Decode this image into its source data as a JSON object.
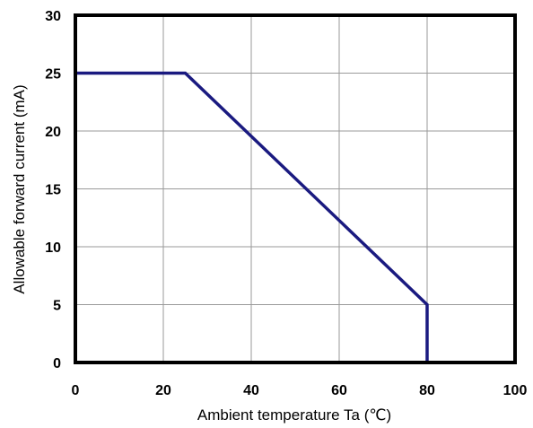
{
  "chart_data": {
    "type": "line",
    "title": "",
    "xlabel": "Ambient temperature Ta (℃)",
    "ylabel": "Allowable forward current  (mA)",
    "xlim": [
      0,
      100
    ],
    "ylim": [
      0,
      30
    ],
    "xticks": [
      0,
      20,
      40,
      60,
      80,
      100
    ],
    "yticks": [
      0,
      5,
      10,
      15,
      20,
      25,
      30
    ],
    "x_tick_labels": [
      "0",
      "20",
      "40",
      "60",
      "80",
      "100"
    ],
    "y_tick_labels": [
      "0",
      "5",
      "10",
      "15",
      "20",
      "25",
      "30"
    ],
    "grid": true,
    "legend": "none",
    "series": [
      {
        "x": [
          0,
          25,
          80,
          80
        ],
        "y": [
          25,
          25,
          5,
          0
        ],
        "color": "#1a1a80"
      }
    ]
  }
}
